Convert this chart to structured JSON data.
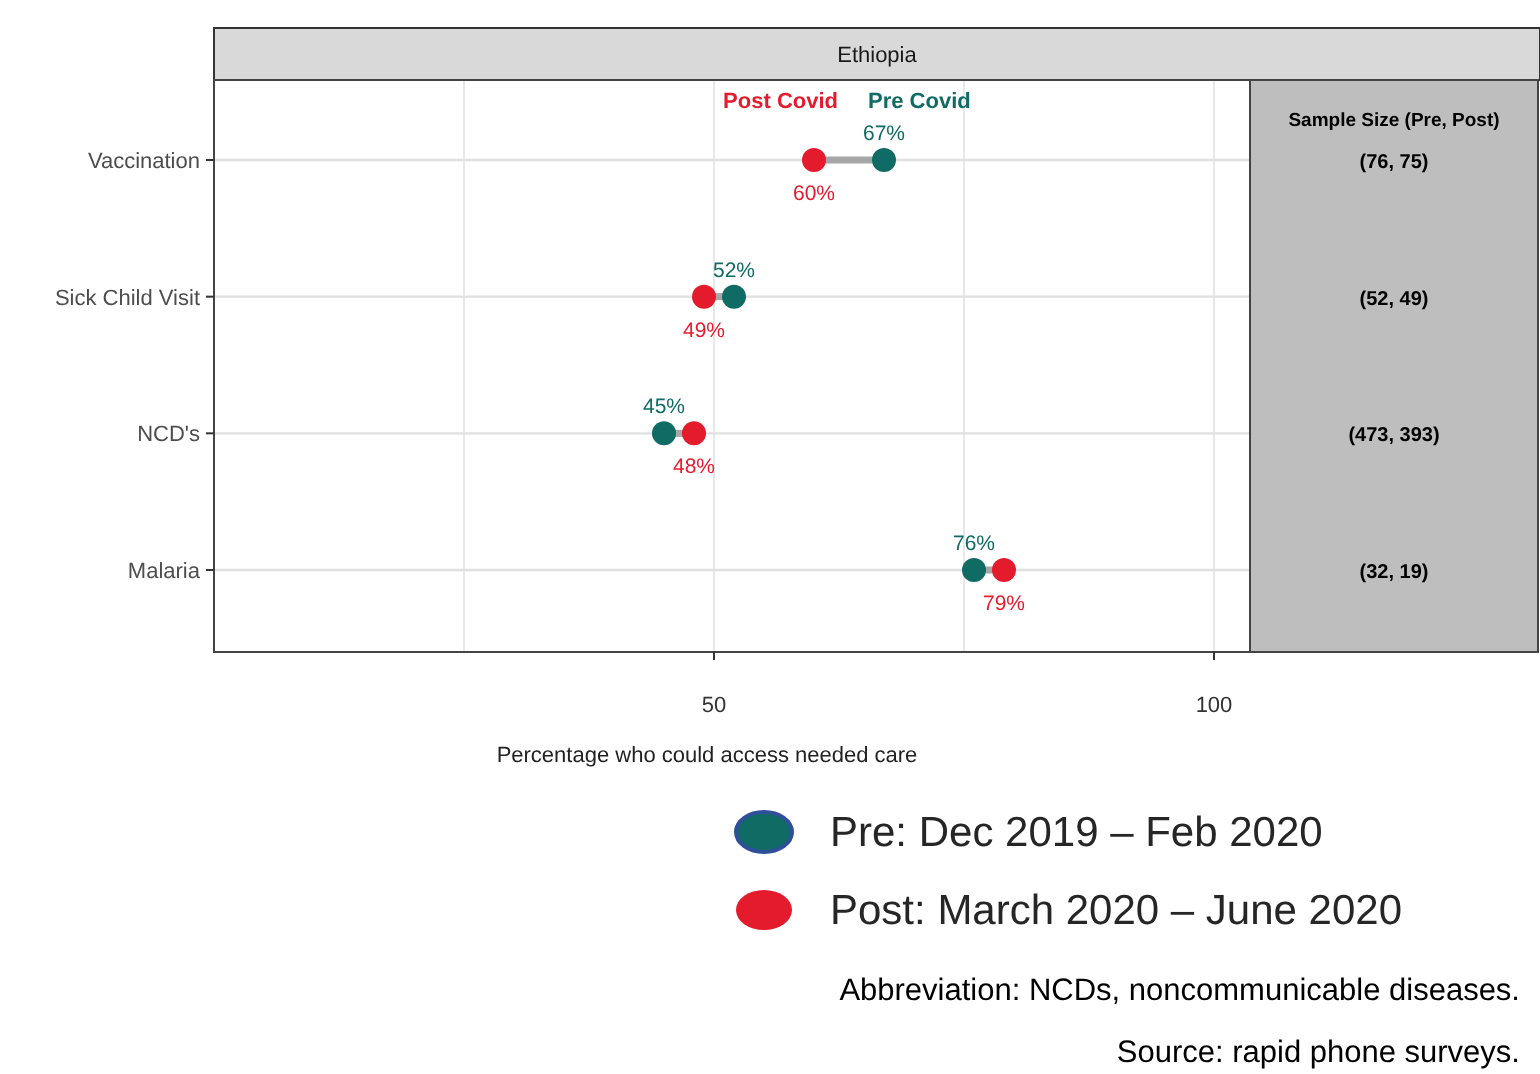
{
  "chart_data": {
    "type": "scatter",
    "orientation": "horizontal",
    "title": "Ethiopia",
    "xlabel": "Percentage who could access needed care",
    "categories": [
      "Vaccination",
      "Sick Child Visit",
      "NCD's",
      "Malaria"
    ],
    "series": [
      {
        "name": "Pre: Dec 2019 – Feb 2020",
        "color": "#0f6b63",
        "values": [
          67,
          52,
          45,
          76
        ],
        "value_labels": [
          "67%",
          "52%",
          "45%",
          "76%"
        ]
      },
      {
        "name": "Post: March 2020 – June 2020",
        "color": "#e31b2c",
        "values": [
          60,
          49,
          48,
          79
        ],
        "value_labels": [
          "60%",
          "49%",
          "48%",
          "79%"
        ]
      }
    ],
    "xlim": [
      0,
      103.6
    ],
    "xticks": [
      {
        "value": 25,
        "label": null
      },
      50,
      {
        "value": 75,
        "label": null
      },
      100
    ],
    "grid": true,
    "legend": "bottom right",
    "marker": "circle",
    "annotations": [
      "Post Covid",
      "Pre Covid",
      "Sample Size (Pre, Post)",
      "(76, 75)",
      "(52, 49)",
      "(473, 393)",
      "(32, 19)",
      "Abbreviation: NCDs, noncommunicable diseases.",
      "Source: rapid phone surveys."
    ]
  }
}
